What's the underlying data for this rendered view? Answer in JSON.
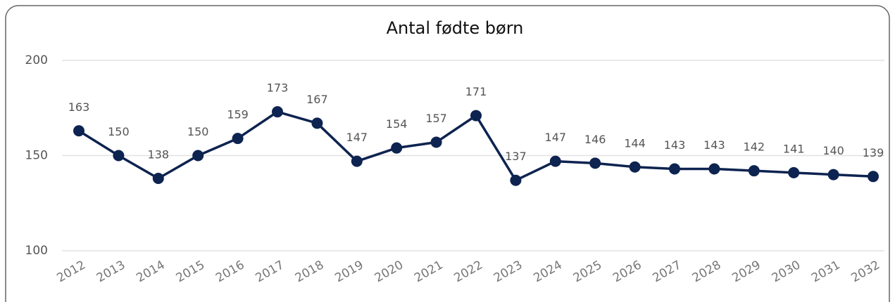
{
  "chart_data": {
    "type": "line",
    "title": "Antal fødte børn",
    "categories": [
      "2012",
      "2013",
      "2014",
      "2015",
      "2016",
      "2017",
      "2018",
      "2019",
      "2020",
      "2021",
      "2022",
      "2023",
      "2024",
      "2025",
      "2026",
      "2027",
      "2028",
      "2029",
      "2030",
      "2031",
      "2032"
    ],
    "values": [
      163,
      150,
      138,
      150,
      159,
      173,
      167,
      147,
      154,
      157,
      171,
      137,
      147,
      146,
      144,
      143,
      143,
      142,
      141,
      140,
      139
    ],
    "color": "#0d2350",
    "ylim": [
      100,
      200
    ],
    "yticks": [
      100,
      150,
      200
    ],
    "grid": true
  }
}
